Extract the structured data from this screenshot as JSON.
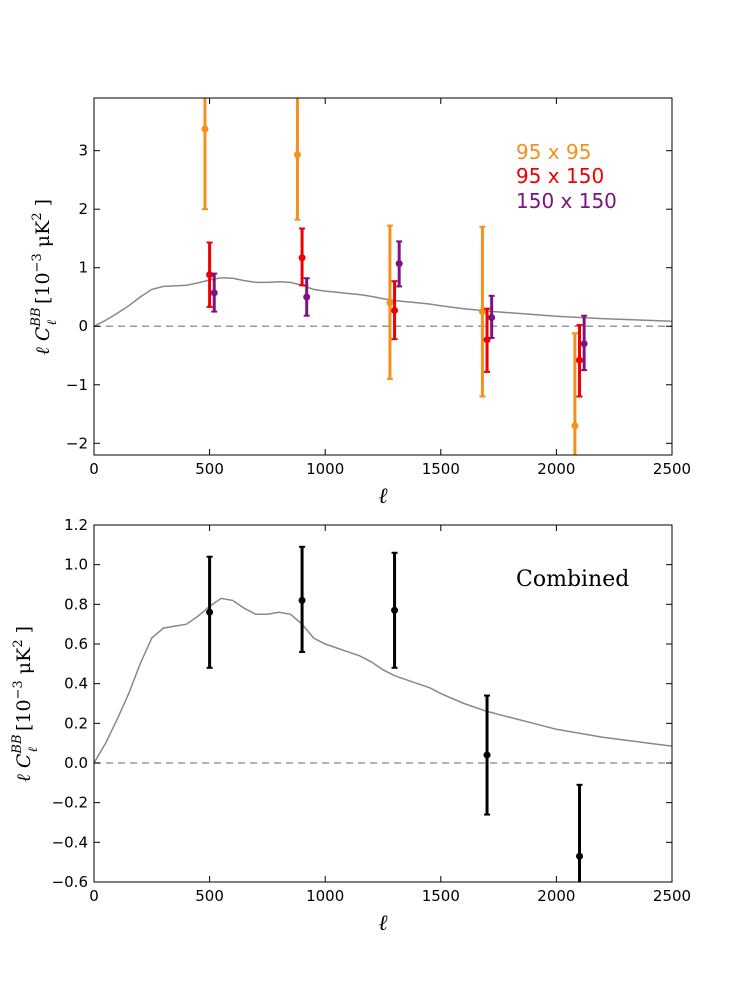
{
  "chart_data": [
    {
      "type": "scatter",
      "panel": "top",
      "xlabel": "ℓ",
      "ylabel": {
        "prefix": "ℓ C",
        "sub": "ℓ",
        "sup": "BB",
        "bracket_open": "[10",
        "exp": "−3",
        "unit": " μK",
        "unit_exp": "2",
        "bracket_close": " ]"
      },
      "xlim": [
        0,
        2500
      ],
      "ylim": [
        -2.2,
        3.9
      ],
      "xticks": [
        0,
        500,
        1000,
        1500,
        2000,
        2500
      ],
      "yticks": [
        -2,
        -1,
        0,
        1,
        2,
        3
      ],
      "zero_line": true,
      "model_curve": {
        "x": [
          0,
          50,
          100,
          150,
          200,
          250,
          300,
          350,
          400,
          450,
          500,
          550,
          600,
          650,
          700,
          750,
          800,
          850,
          900,
          950,
          1000,
          1050,
          1100,
          1150,
          1200,
          1250,
          1300,
          1350,
          1400,
          1450,
          1500,
          1600,
          1700,
          1800,
          1900,
          2000,
          2100,
          2200,
          2300,
          2400,
          2500
        ],
        "y": [
          0.0,
          0.1,
          0.22,
          0.35,
          0.5,
          0.63,
          0.68,
          0.69,
          0.7,
          0.74,
          0.79,
          0.83,
          0.82,
          0.78,
          0.75,
          0.75,
          0.76,
          0.75,
          0.7,
          0.63,
          0.6,
          0.58,
          0.56,
          0.54,
          0.51,
          0.47,
          0.44,
          0.42,
          0.4,
          0.38,
          0.35,
          0.3,
          0.26,
          0.23,
          0.2,
          0.17,
          0.15,
          0.13,
          0.115,
          0.1,
          0.085
        ]
      },
      "series": [
        {
          "name": "95 x 95",
          "color": "#f5901e",
          "x": [
            480,
            880,
            1280,
            1680,
            2080
          ],
          "y": [
            3.37,
            2.93,
            0.4,
            0.25,
            -1.7
          ],
          "err_low": [
            2.0,
            1.82,
            -0.9,
            -1.2,
            -2.2
          ],
          "err_high": [
            3.9,
            3.9,
            1.72,
            1.7,
            -0.12
          ]
        },
        {
          "name": "95 x 150",
          "color": "#ee0000",
          "x": [
            500,
            900,
            1300,
            1700,
            2100
          ],
          "y": [
            0.88,
            1.17,
            0.27,
            -0.23,
            -0.58
          ],
          "err_low": [
            0.33,
            0.7,
            -0.22,
            -0.78,
            -1.2
          ],
          "err_high": [
            1.43,
            1.67,
            0.77,
            0.3,
            0.02
          ]
        },
        {
          "name": "150 x 150",
          "color": "#7b1480",
          "x": [
            520,
            920,
            1320,
            1720,
            2120
          ],
          "y": [
            0.57,
            0.5,
            1.07,
            0.15,
            -0.3
          ],
          "err_low": [
            0.25,
            0.18,
            0.68,
            -0.2,
            -0.75
          ],
          "err_high": [
            0.9,
            0.82,
            1.45,
            0.52,
            0.18
          ]
        }
      ],
      "legend_position": "top-right"
    },
    {
      "type": "scatter",
      "panel": "bottom",
      "annotation": "Combined",
      "xlabel": "ℓ",
      "ylabel": {
        "prefix": "ℓ C",
        "sub": "ℓ",
        "sup": "BB",
        "bracket_open": "[10",
        "exp": "−3",
        "unit": " μK",
        "unit_exp": "2",
        "bracket_close": " ]"
      },
      "xlim": [
        0,
        2500
      ],
      "ylim": [
        -0.6,
        1.2
      ],
      "xticks": [
        0,
        500,
        1000,
        1500,
        2000,
        2500
      ],
      "yticks": [
        -0.6,
        -0.4,
        -0.2,
        0.0,
        0.2,
        0.4,
        0.6,
        0.8,
        1.0,
        1.2
      ],
      "ytick_labels": [
        "−0.6",
        "−0.4",
        "−0.2",
        "0.0",
        "0.2",
        "0.4",
        "0.6",
        "0.8",
        "1.0",
        "1.2"
      ],
      "zero_line": true,
      "model_curve": {
        "x": [
          0,
          50,
          100,
          150,
          200,
          250,
          300,
          350,
          400,
          450,
          500,
          550,
          600,
          650,
          700,
          750,
          800,
          850,
          900,
          950,
          1000,
          1050,
          1100,
          1150,
          1200,
          1250,
          1300,
          1350,
          1400,
          1450,
          1500,
          1600,
          1700,
          1800,
          1900,
          2000,
          2100,
          2200,
          2300,
          2400,
          2500
        ],
        "y": [
          0.0,
          0.1,
          0.22,
          0.35,
          0.5,
          0.63,
          0.68,
          0.69,
          0.7,
          0.74,
          0.79,
          0.83,
          0.82,
          0.78,
          0.75,
          0.75,
          0.76,
          0.75,
          0.7,
          0.63,
          0.6,
          0.58,
          0.56,
          0.54,
          0.51,
          0.47,
          0.44,
          0.42,
          0.4,
          0.38,
          0.35,
          0.3,
          0.26,
          0.23,
          0.2,
          0.17,
          0.15,
          0.13,
          0.115,
          0.1,
          0.085
        ]
      },
      "series": [
        {
          "name": "Combined",
          "color": "#000000",
          "x": [
            500,
            900,
            1300,
            1700,
            2100
          ],
          "y": [
            0.76,
            0.82,
            0.77,
            0.04,
            -0.47
          ],
          "err_low": [
            0.48,
            0.56,
            0.48,
            -0.26,
            -0.6
          ],
          "err_high": [
            1.04,
            1.09,
            1.06,
            0.34,
            -0.11
          ]
        }
      ]
    }
  ]
}
